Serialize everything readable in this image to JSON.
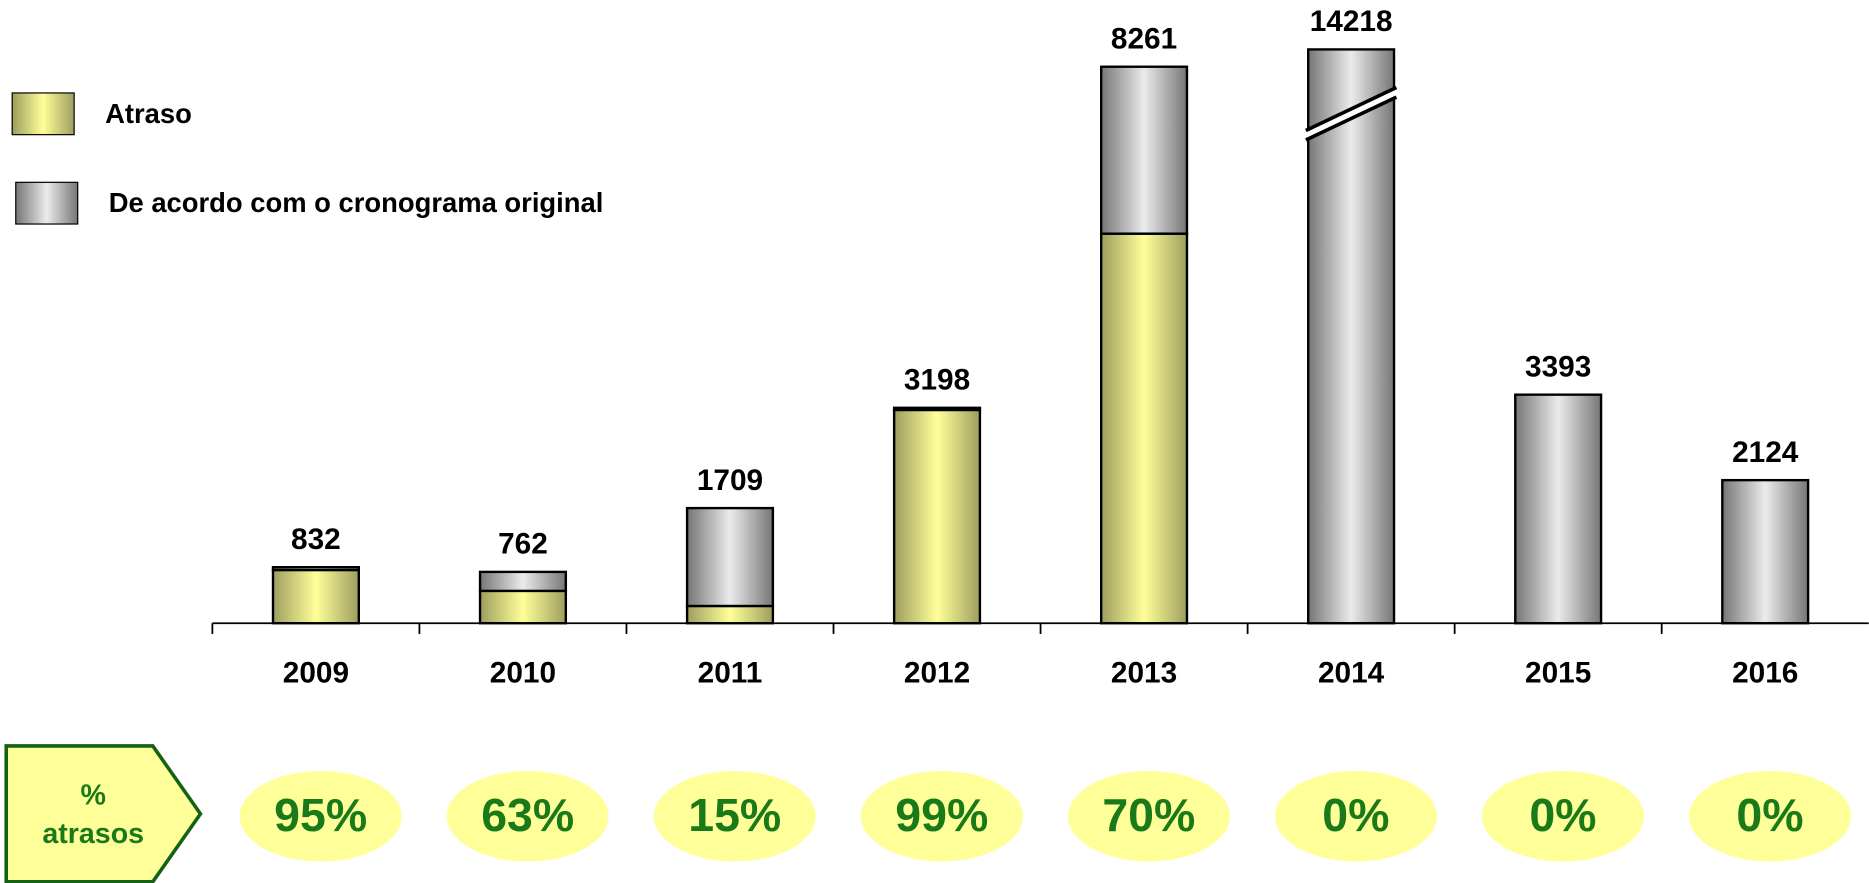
{
  "chart_data": {
    "type": "stacked_bar",
    "categories": [
      "2009",
      "2010",
      "2011",
      "2012",
      "2013",
      "2014",
      "2015",
      "2016"
    ],
    "series": [
      {
        "name": "Atraso",
        "color": "#ffff99",
        "values": [
          790,
          480,
          256,
          3166,
          5783,
          0,
          0,
          0
        ]
      },
      {
        "name": "De acordo com o cronograma original",
        "color": "#ebebeb",
        "values": [
          42,
          282,
          1453,
          32,
          2478,
          14218,
          3393,
          2124
        ]
      }
    ],
    "totals": [
      832,
      762,
      1709,
      3198,
      8261,
      14218,
      3393,
      2124
    ],
    "axis_break": {
      "at": 8400,
      "resume": 14100
    },
    "legend": "top-left",
    "delay_row": {
      "label": [
        "%",
        "atrasos"
      ],
      "values": [
        95,
        63,
        15,
        99,
        70,
        0,
        0,
        0
      ],
      "value_labels": [
        "95%",
        "63%",
        "15%",
        "99%",
        "70%",
        "0%",
        "0%",
        "0%"
      ],
      "color": "#1a7a1a",
      "fill": "#ffff99"
    }
  }
}
